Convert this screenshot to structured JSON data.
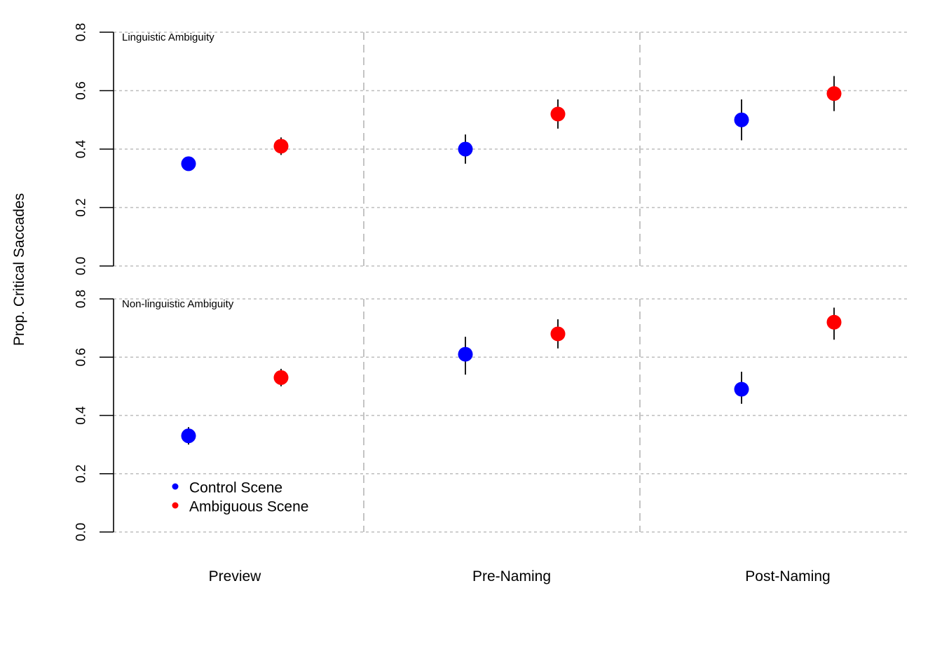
{
  "chart_data": {
    "type": "scatter",
    "ylabel": "Prop. Critical Saccades",
    "ylim": [
      0,
      0.8
    ],
    "yticks": [
      "0.0",
      "0.2",
      "0.4",
      "0.6",
      "0.8"
    ],
    "grid": true,
    "categories": [
      "Preview",
      "Pre-Naming",
      "Post-Naming"
    ],
    "legend": {
      "placement": "bottom-left of lower panel",
      "entries": [
        {
          "label": "Control Scene",
          "color": "#0000ff"
        },
        {
          "label": "Ambiguous Scene",
          "color": "#ff0000"
        }
      ]
    },
    "panels": [
      {
        "title": "Linguistic Ambiguity",
        "series": [
          {
            "name": "Control Scene",
            "color": "#0000ff",
            "values": [
              0.35,
              0.4,
              0.5
            ],
            "err_low": [
              0.33,
              0.35,
              0.43
            ],
            "err_high": [
              0.37,
              0.45,
              0.57
            ]
          },
          {
            "name": "Ambiguous Scene",
            "color": "#ff0000",
            "values": [
              0.41,
              0.52,
              0.59
            ],
            "err_low": [
              0.38,
              0.47,
              0.53
            ],
            "err_high": [
              0.44,
              0.57,
              0.65
            ]
          }
        ]
      },
      {
        "title": "Non-linguistic Ambiguity",
        "series": [
          {
            "name": "Control Scene",
            "color": "#0000ff",
            "values": [
              0.33,
              0.61,
              0.49
            ],
            "err_low": [
              0.3,
              0.54,
              0.44
            ],
            "err_high": [
              0.36,
              0.67,
              0.55
            ]
          },
          {
            "name": "Ambiguous Scene",
            "color": "#ff0000",
            "values": [
              0.53,
              0.68,
              0.72
            ],
            "err_low": [
              0.5,
              0.63,
              0.66
            ],
            "err_high": [
              0.56,
              0.73,
              0.77
            ]
          }
        ]
      }
    ]
  }
}
